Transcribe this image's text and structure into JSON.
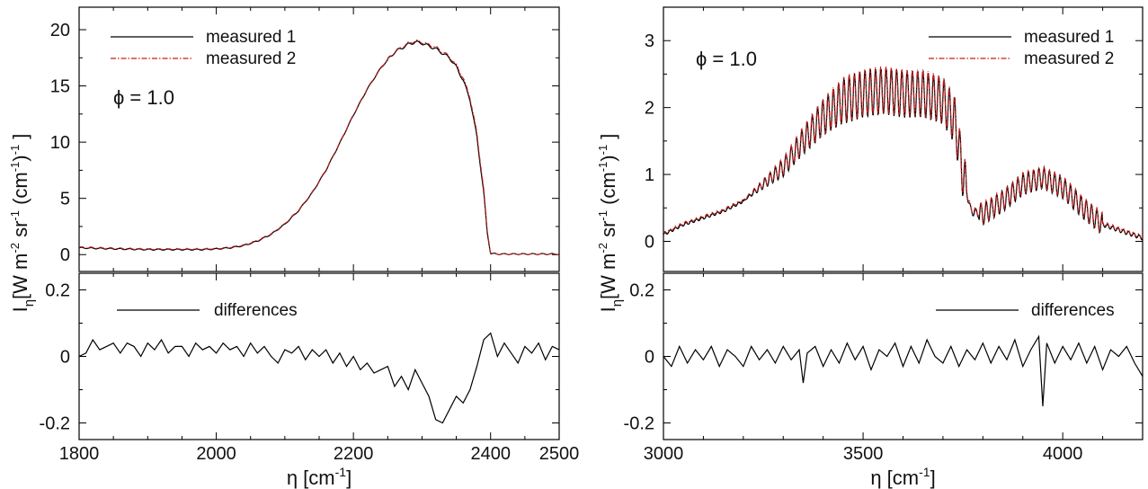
{
  "figure": {
    "ylabel": "I_η [W m⁻² sr⁻¹ (cm⁻¹)⁻¹]",
    "ylabel_parts": [
      "I",
      "η",
      "[W m",
      "-2",
      " sr",
      "-1",
      " (cm",
      "-1",
      ")",
      "-1",
      " ]"
    ]
  },
  "chart_data": [
    {
      "type": "line",
      "panel": "left-top",
      "annotation": "ϕ = 1.0",
      "xlim": [
        1800,
        2500
      ],
      "ylim": [
        -1.5,
        22
      ],
      "yticks": [
        0,
        5,
        10,
        15,
        20
      ],
      "grid": false,
      "legend_position": "top-left",
      "series": [
        {
          "name": "measured 1",
          "color": "#000000",
          "style": "solid",
          "x": [
            1800,
            1830,
            1860,
            1900,
            1940,
            1980,
            2000,
            2020,
            2040,
            2060,
            2080,
            2100,
            2120,
            2140,
            2160,
            2180,
            2200,
            2220,
            2240,
            2260,
            2280,
            2290,
            2300,
            2320,
            2340,
            2350,
            2360,
            2370,
            2380,
            2390,
            2395,
            2400,
            2410,
            2450,
            2500
          ],
          "y": [
            0.6,
            0.55,
            0.5,
            0.45,
            0.45,
            0.45,
            0.5,
            0.6,
            0.8,
            1.2,
            1.8,
            2.7,
            3.9,
            5.5,
            7.5,
            9.9,
            12.4,
            14.7,
            16.6,
            18.0,
            18.7,
            18.9,
            18.8,
            18.3,
            17.5,
            16.7,
            15.5,
            13.8,
            10.5,
            5.5,
            2.0,
            0.1,
            0.05,
            0.05,
            0.05
          ]
        },
        {
          "name": "measured 2",
          "color": "#cc1a1a",
          "style": "dashdot",
          "x": [
            1800,
            1830,
            1860,
            1900,
            1940,
            1980,
            2000,
            2020,
            2040,
            2060,
            2080,
            2100,
            2120,
            2140,
            2160,
            2180,
            2200,
            2220,
            2240,
            2260,
            2280,
            2290,
            2300,
            2320,
            2340,
            2350,
            2360,
            2370,
            2380,
            2390,
            2395,
            2400,
            2410,
            2450,
            2500
          ],
          "y": [
            0.65,
            0.6,
            0.55,
            0.5,
            0.5,
            0.5,
            0.55,
            0.65,
            0.85,
            1.25,
            1.85,
            2.75,
            3.95,
            5.55,
            7.55,
            9.95,
            12.45,
            14.75,
            16.65,
            18.05,
            18.8,
            19.0,
            18.9,
            18.45,
            17.6,
            16.85,
            15.7,
            14.0,
            10.8,
            5.8,
            2.2,
            0.15,
            0.05,
            0.05,
            0.05
          ]
        }
      ]
    },
    {
      "type": "line",
      "panel": "left-bottom",
      "xlabel": "η [cm⁻¹]",
      "xlim": [
        1800,
        2500
      ],
      "xticks": [
        1800,
        2000,
        2200,
        2400,
        2500
      ],
      "ylim": [
        -0.25,
        0.25
      ],
      "yticks": [
        -0.2,
        0,
        0.2
      ],
      "ytick_labels": [
        "-0.2",
        "0",
        "0.2"
      ],
      "grid": false,
      "legend_position": "top-left",
      "series": [
        {
          "name": "differences",
          "color": "#000000",
          "style": "solid",
          "x": [
            1800,
            1810,
            1820,
            1830,
            1840,
            1850,
            1860,
            1870,
            1880,
            1890,
            1900,
            1910,
            1920,
            1930,
            1940,
            1950,
            1960,
            1970,
            1980,
            1990,
            2000,
            2010,
            2020,
            2030,
            2040,
            2050,
            2060,
            2070,
            2080,
            2090,
            2100,
            2110,
            2120,
            2130,
            2140,
            2150,
            2160,
            2170,
            2180,
            2190,
            2200,
            2210,
            2220,
            2230,
            2240,
            2250,
            2260,
            2270,
            2280,
            2290,
            2300,
            2310,
            2320,
            2330,
            2340,
            2350,
            2360,
            2370,
            2380,
            2390,
            2400,
            2410,
            2420,
            2430,
            2440,
            2450,
            2460,
            2470,
            2480,
            2490,
            2500
          ],
          "y": [
            0.0,
            0.01,
            0.05,
            0.02,
            0.03,
            0.04,
            0.01,
            0.04,
            0.03,
            0.0,
            0.04,
            0.02,
            0.05,
            0.01,
            0.03,
            0.03,
            0.0,
            0.04,
            0.02,
            0.03,
            0.01,
            0.04,
            0.02,
            0.03,
            0.0,
            0.04,
            0.01,
            0.03,
            0.0,
            -0.02,
            0.02,
            0.01,
            0.03,
            -0.01,
            0.02,
            0.0,
            0.02,
            -0.02,
            0.01,
            -0.03,
            0.0,
            -0.04,
            -0.02,
            -0.05,
            -0.04,
            -0.03,
            -0.09,
            -0.06,
            -0.1,
            -0.04,
            -0.08,
            -0.12,
            -0.19,
            -0.2,
            -0.16,
            -0.12,
            -0.14,
            -0.1,
            -0.03,
            0.05,
            0.07,
            0.0,
            0.04,
            0.01,
            -0.02,
            0.03,
            0.01,
            0.04,
            -0.01,
            0.03,
            0.02
          ]
        }
      ]
    },
    {
      "type": "line",
      "panel": "right-top",
      "annotation": "ϕ = 1.0",
      "xlim": [
        3000,
        4200
      ],
      "ylim": [
        -0.45,
        3.5
      ],
      "yticks": [
        0,
        1,
        2,
        3
      ],
      "grid": false,
      "legend_position": "top-right",
      "series": [
        {
          "name": "measured 1",
          "color": "#000000",
          "style": "solid",
          "x": [
            3000,
            3050,
            3100,
            3150,
            3200,
            3250,
            3300,
            3350,
            3400,
            3450,
            3500,
            3550,
            3600,
            3650,
            3700,
            3730,
            3750,
            3770,
            3800,
            3850,
            3900,
            3950,
            4000,
            4050,
            4100,
            4150,
            4200
          ],
          "y": [
            0.1,
            0.25,
            0.35,
            0.45,
            0.6,
            0.85,
            1.1,
            1.5,
            1.85,
            2.1,
            2.2,
            2.25,
            2.2,
            2.2,
            2.1,
            1.8,
            1.0,
            0.45,
            0.4,
            0.6,
            0.85,
            0.95,
            0.8,
            0.5,
            0.25,
            0.15,
            0.05
          ]
        },
        {
          "name": "measured 2",
          "color": "#cc1a1a",
          "style": "dashdot",
          "x": [
            3000,
            3050,
            3100,
            3150,
            3200,
            3250,
            3300,
            3350,
            3400,
            3450,
            3500,
            3550,
            3600,
            3650,
            3700,
            3730,
            3750,
            3770,
            3800,
            3850,
            3900,
            3950,
            4000,
            4050,
            4100,
            4150,
            4200
          ],
          "y": [
            0.12,
            0.27,
            0.37,
            0.47,
            0.62,
            0.87,
            1.12,
            1.52,
            1.87,
            2.12,
            2.22,
            2.27,
            2.22,
            2.22,
            2.12,
            1.82,
            1.02,
            0.47,
            0.42,
            0.62,
            0.87,
            0.97,
            0.82,
            0.52,
            0.27,
            0.17,
            0.07
          ]
        }
      ]
    },
    {
      "type": "line",
      "panel": "right-bottom",
      "xlabel": "η [cm⁻¹]",
      "xlim": [
        3000,
        4200
      ],
      "xticks": [
        3000,
        3500,
        4000
      ],
      "ylim": [
        -0.25,
        0.25
      ],
      "yticks": [
        -0.2,
        0,
        0.2
      ],
      "ytick_labels": [
        "-0.2",
        "0",
        "0.2"
      ],
      "grid": false,
      "legend_position": "top-right",
      "series": [
        {
          "name": "differences",
          "color": "#000000",
          "style": "solid",
          "x": [
            3000,
            3020,
            3040,
            3060,
            3080,
            3100,
            3120,
            3140,
            3160,
            3180,
            3200,
            3220,
            3240,
            3260,
            3280,
            3300,
            3320,
            3340,
            3350,
            3360,
            3380,
            3400,
            3420,
            3440,
            3460,
            3480,
            3500,
            3520,
            3540,
            3560,
            3580,
            3600,
            3620,
            3640,
            3660,
            3680,
            3700,
            3720,
            3740,
            3760,
            3780,
            3800,
            3820,
            3840,
            3860,
            3880,
            3900,
            3920,
            3940,
            3950,
            3960,
            3980,
            4000,
            4020,
            4040,
            4060,
            4080,
            4100,
            4120,
            4140,
            4160,
            4180,
            4200
          ],
          "y": [
            0.0,
            -0.03,
            0.03,
            -0.02,
            0.02,
            -0.01,
            0.03,
            -0.03,
            0.02,
            0.0,
            -0.03,
            0.03,
            -0.01,
            0.02,
            -0.02,
            0.03,
            -0.01,
            0.02,
            -0.08,
            0.01,
            0.03,
            -0.03,
            0.02,
            -0.02,
            0.04,
            -0.01,
            0.03,
            -0.04,
            0.02,
            0.0,
            0.04,
            -0.03,
            0.03,
            -0.02,
            0.05,
            0.0,
            -0.02,
            0.03,
            -0.03,
            0.02,
            -0.01,
            0.04,
            -0.02,
            0.03,
            -0.01,
            0.05,
            -0.03,
            0.02,
            0.06,
            -0.15,
            0.04,
            -0.02,
            0.03,
            -0.01,
            0.04,
            -0.02,
            0.03,
            -0.04,
            0.02,
            0.0,
            0.03,
            -0.02,
            -0.06
          ]
        }
      ]
    }
  ]
}
